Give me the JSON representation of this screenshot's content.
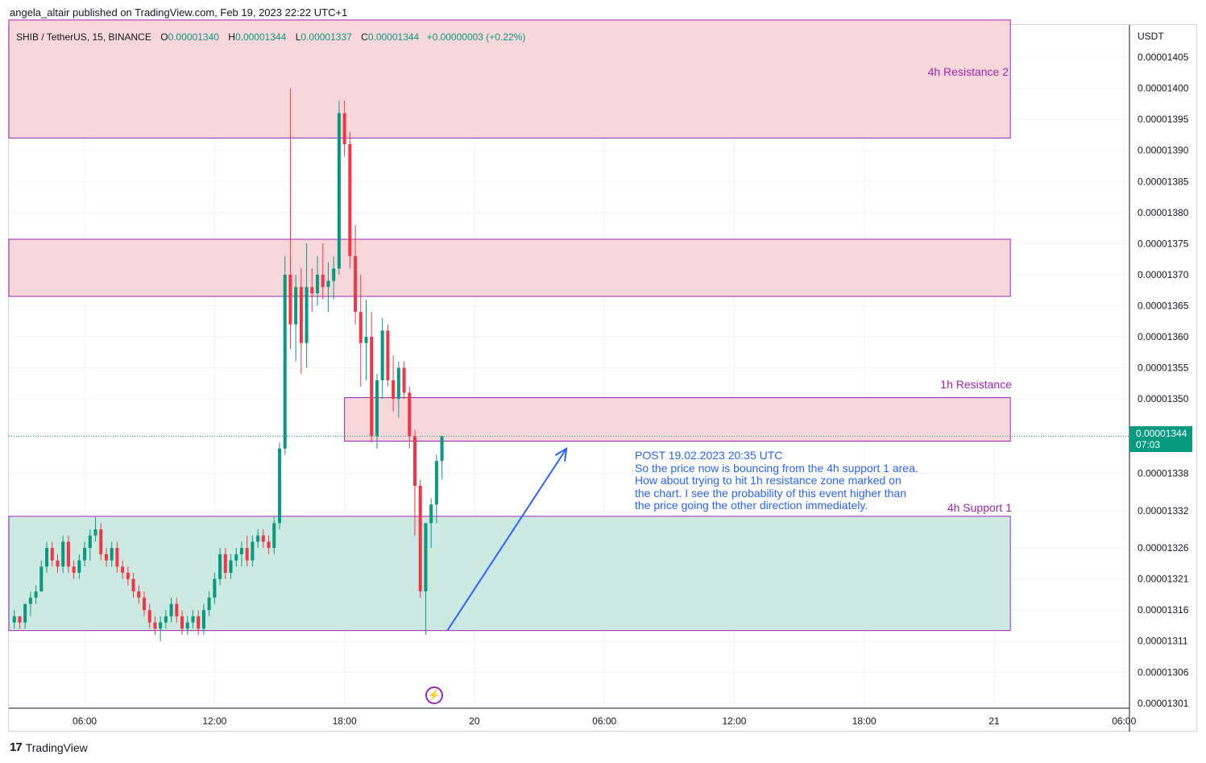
{
  "header": {
    "publisher_line": "angela_altair published on TradingView.com, Feb 19, 2023 22:22 UTC+1"
  },
  "legend": {
    "symbol": "SHIB / TetherUS, 15, BINANCE",
    "o_label": "O",
    "o_value": "0.00001340",
    "h_label": "H",
    "h_value": "0.00001344",
    "l_label": "L",
    "l_value": "0.00001337",
    "c_label": "C",
    "c_value": "0.00001344",
    "change": "+0.00000003 (+0.22%)"
  },
  "price_axis": {
    "unit": "USDT",
    "current_price": "0.00001344",
    "countdown": "07:03"
  },
  "brand": {
    "logo": "17",
    "name": "TradingView"
  },
  "annotation": {
    "lines": [
      "POST 19.02.2023 20:35 UTC",
      "So the price now is bouncing from the 4h support 1 area.",
      "How about trying to hit 1h resistance zone marked on",
      "the chart. I see the probability of this event higher than",
      "the price going the other direction immediately."
    ]
  },
  "zones": {
    "resistance2_label": "4h Resistance 2",
    "resistance1h_label": "1h Resistance",
    "support1_label": "4h Support 1"
  },
  "icons": {
    "flash": "lightning-icon"
  },
  "colors": {
    "up": "#089981",
    "down": "#f23645",
    "resistance_fill": "#f8d7da",
    "support_fill": "#cdeae2",
    "zone_border": "#9c27b0",
    "annotation": "#2962ff"
  },
  "chart_data": {
    "type": "candlestick",
    "ylim": [
      1.3002e-05,
      1.4102e-05
    ],
    "xlim": [
      "2023-02-19 02:30",
      "2023-02-21 06:15"
    ],
    "x_ticks": [
      "06:00",
      "12:00",
      "18:00",
      "20",
      "06:00",
      "12:00",
      "18:00",
      "21",
      "06:00"
    ],
    "y_ticks": [
      "0.00001405",
      "0.00001400",
      "0.00001395",
      "0.00001390",
      "0.00001385",
      "0.00001380",
      "0.00001375",
      "0.00001370",
      "0.00001365",
      "0.00001360",
      "0.00001355",
      "0.00001350",
      "0.00001338",
      "0.00001332",
      "0.00001326",
      "0.00001321",
      "0.00001316",
      "0.00001311",
      "0.00001306",
      "0.00001301"
    ],
    "zones": [
      {
        "name": "4h Resistance 2",
        "type": "resistance",
        "from": "2023-02-19 02:30",
        "to": "2023-02-21 00:45",
        "low": 1.392e-05,
        "high": 1.411e-05
      },
      {
        "name": "",
        "type": "resistance",
        "from": "2023-02-19 02:30",
        "to": "2023-02-21 00:45",
        "low": 1.3665e-05,
        "high": 1.3757e-05
      },
      {
        "name": "1h Resistance",
        "type": "resistance",
        "from": "2023-02-19 18:00",
        "to": "2023-02-21 00:45",
        "low": 1.3432e-05,
        "high": 1.3502e-05
      },
      {
        "name": "4h Support 1",
        "type": "support",
        "from": "2023-02-19 02:30",
        "to": "2023-02-21 00:45",
        "low": 1.3127e-05,
        "high": 1.3311e-05
      }
    ],
    "projection_arrow": {
      "from": [
        "2023-02-19 22:45",
        1.3127e-05
      ],
      "to": [
        "2023-02-20 04:15",
        1.342e-05
      ]
    },
    "candles": [
      [
        1.314e-05,
        1.316e-05,
        1.313e-05,
        1.315e-05
      ],
      [
        1.315e-05,
        1.315e-05,
        1.313e-05,
        1.314e-05
      ],
      [
        1.314e-05,
        1.317e-05,
        1.313e-05,
        1.317e-05
      ],
      [
        1.317e-05,
        1.319e-05,
        1.315e-05,
        1.318e-05
      ],
      [
        1.318e-05,
        1.32e-05,
        1.317e-05,
        1.319e-05
      ],
      [
        1.319e-05,
        1.324e-05,
        1.319e-05,
        1.323e-05
      ],
      [
        1.323e-05,
        1.327e-05,
        1.322e-05,
        1.326e-05
      ],
      [
        1.326e-05,
        1.327e-05,
        1.323e-05,
        1.324e-05
      ],
      [
        1.324e-05,
        1.325e-05,
        1.322e-05,
        1.323e-05
      ],
      [
        1.323e-05,
        1.328e-05,
        1.322e-05,
        1.327e-05
      ],
      [
        1.327e-05,
        1.328e-05,
        1.322e-05,
        1.323e-05
      ],
      [
        1.323e-05,
        1.324e-05,
        1.321e-05,
        1.322e-05
      ],
      [
        1.322e-05,
        1.325e-05,
        1.321e-05,
        1.324e-05
      ],
      [
        1.324e-05,
        1.327e-05,
        1.323e-05,
        1.326e-05
      ],
      [
        1.326e-05,
        1.329e-05,
        1.324e-05,
        1.328e-05
      ],
      [
        1.328e-05,
        1.331e-05,
        1.327e-05,
        1.329e-05
      ],
      [
        1.329e-05,
        1.33e-05,
        1.324e-05,
        1.325e-05
      ],
      [
        1.325e-05,
        1.326e-05,
        1.323e-05,
        1.324e-05
      ],
      [
        1.324e-05,
        1.327e-05,
        1.323e-05,
        1.326e-05
      ],
      [
        1.326e-05,
        1.327e-05,
        1.322e-05,
        1.323e-05
      ],
      [
        1.323e-05,
        1.324e-05,
        1.321e-05,
        1.322e-05
      ],
      [
        1.322e-05,
        1.323e-05,
        1.32e-05,
        1.321e-05
      ],
      [
        1.321e-05,
        1.322e-05,
        1.318e-05,
        1.319e-05
      ],
      [
        1.319e-05,
        1.32e-05,
        1.317e-05,
        1.318e-05
      ],
      [
        1.318e-05,
        1.319e-05,
        1.315e-05,
        1.316e-05
      ],
      [
        1.316e-05,
        1.317e-05,
        1.313e-05,
        1.314e-05
      ],
      [
        1.314e-05,
        1.315e-05,
        1.312e-05,
        1.313e-05
      ],
      [
        1.313e-05,
        1.315e-05,
        1.311e-05,
        1.314e-05
      ],
      [
        1.314e-05,
        1.316e-05,
        1.313e-05,
        1.315e-05
      ],
      [
        1.315e-05,
        1.318e-05,
        1.314e-05,
        1.317e-05
      ],
      [
        1.317e-05,
        1.318e-05,
        1.314e-05,
        1.315e-05
      ],
      [
        1.315e-05,
        1.316e-05,
        1.312e-05,
        1.313e-05
      ],
      [
        1.313e-05,
        1.315e-05,
        1.312e-05,
        1.314e-05
      ],
      [
        1.314e-05,
        1.316e-05,
        1.313e-05,
        1.315e-05
      ],
      [
        1.315e-05,
        1.316e-05,
        1.312e-05,
        1.313e-05
      ],
      [
        1.313e-05,
        1.317e-05,
        1.312e-05,
        1.316e-05
      ],
      [
        1.316e-05,
        1.319e-05,
        1.315e-05,
        1.318e-05
      ],
      [
        1.318e-05,
        1.322e-05,
        1.317e-05,
        1.321e-05
      ],
      [
        1.321e-05,
        1.326e-05,
        1.32e-05,
        1.325e-05
      ],
      [
        1.325e-05,
        1.326e-05,
        1.321e-05,
        1.322e-05
      ],
      [
        1.322e-05,
        1.325e-05,
        1.321e-05,
        1.324e-05
      ],
      [
        1.324e-05,
        1.326e-05,
        1.323e-05,
        1.325e-05
      ],
      [
        1.325e-05,
        1.327e-05,
        1.323e-05,
        1.326e-05
      ],
      [
        1.326e-05,
        1.328e-05,
        1.323e-05,
        1.324e-05
      ],
      [
        1.324e-05,
        1.328e-05,
        1.323e-05,
        1.327e-05
      ],
      [
        1.327e-05,
        1.329e-05,
        1.326e-05,
        1.328e-05
      ],
      [
        1.328e-05,
        1.329e-05,
        1.326e-05,
        1.327e-05
      ],
      [
        1.327e-05,
        1.328e-05,
        1.325e-05,
        1.326e-05
      ],
      [
        1.326e-05,
        1.331e-05,
        1.325e-05,
        1.33e-05
      ],
      [
        1.33e-05,
        1.343e-05,
        1.329e-05,
        1.342e-05
      ],
      [
        1.342e-05,
        1.373e-05,
        1.341e-05,
        1.37e-05
      ],
      [
        1.37e-05,
        1.4e-05,
        1.358e-05,
        1.362e-05
      ],
      [
        1.362e-05,
        1.37e-05,
        1.356e-05,
        1.368e-05
      ],
      [
        1.368e-05,
        1.371e-05,
        1.354e-05,
        1.359e-05
      ],
      [
        1.359e-05,
        1.375e-05,
        1.355e-05,
        1.368e-05
      ],
      [
        1.368e-05,
        1.371e-05,
        1.364e-05,
        1.367e-05
      ],
      [
        1.367e-05,
        1.373e-05,
        1.365e-05,
        1.37e-05
      ],
      [
        1.37e-05,
        1.375e-05,
        1.366e-05,
        1.368e-05
      ],
      [
        1.368e-05,
        1.372e-05,
        1.364e-05,
        1.369e-05
      ],
      [
        1.369e-05,
        1.373e-05,
        1.366e-05,
        1.371e-05
      ],
      [
        1.371e-05,
        1.398e-05,
        1.37e-05,
        1.396e-05
      ],
      [
        1.396e-05,
        1.398e-05,
        1.389e-05,
        1.391e-05
      ],
      [
        1.391e-05,
        1.393e-05,
        1.371e-05,
        1.373e-05
      ],
      [
        1.373e-05,
        1.378e-05,
        1.362e-05,
        1.364e-05
      ],
      [
        1.364e-05,
        1.37e-05,
        1.352e-05,
        1.359e-05
      ],
      [
        1.359e-05,
        1.366e-05,
        1.353e-05,
        1.36e-05
      ],
      [
        1.36e-05,
        1.364e-05,
        1.343e-05,
        1.344e-05
      ],
      [
        1.344e-05,
        1.354e-05,
        1.342e-05,
        1.353e-05
      ],
      [
        1.353e-05,
        1.363e-05,
        1.35e-05,
        1.361e-05
      ],
      [
        1.361e-05,
        1.362e-05,
        1.352e-05,
        1.353e-05
      ],
      [
        1.353e-05,
        1.357e-05,
        1.348e-05,
        1.35e-05
      ],
      [
        1.35e-05,
        1.356e-05,
        1.347e-05,
        1.355e-05
      ],
      [
        1.355e-05,
        1.356e-05,
        1.35e-05,
        1.351e-05
      ],
      [
        1.351e-05,
        1.352e-05,
        1.342e-05,
        1.344e-05
      ],
      [
        1.344e-05,
        1.345e-05,
        1.328e-05,
        1.336e-05
      ],
      [
        1.336e-05,
        1.337e-05,
        1.318e-05,
        1.319e-05
      ],
      [
        1.319e-05,
        1.33e-05,
        1.312e-05,
        1.33e-05
      ],
      [
        1.33e-05,
        1.334e-05,
        1.326e-05,
        1.333e-05
      ],
      [
        1.333e-05,
        1.341e-05,
        1.33e-05,
        1.34e-05
      ],
      [
        1.34e-05,
        1.344e-05,
        1.337e-05,
        1.344e-05
      ]
    ]
  }
}
